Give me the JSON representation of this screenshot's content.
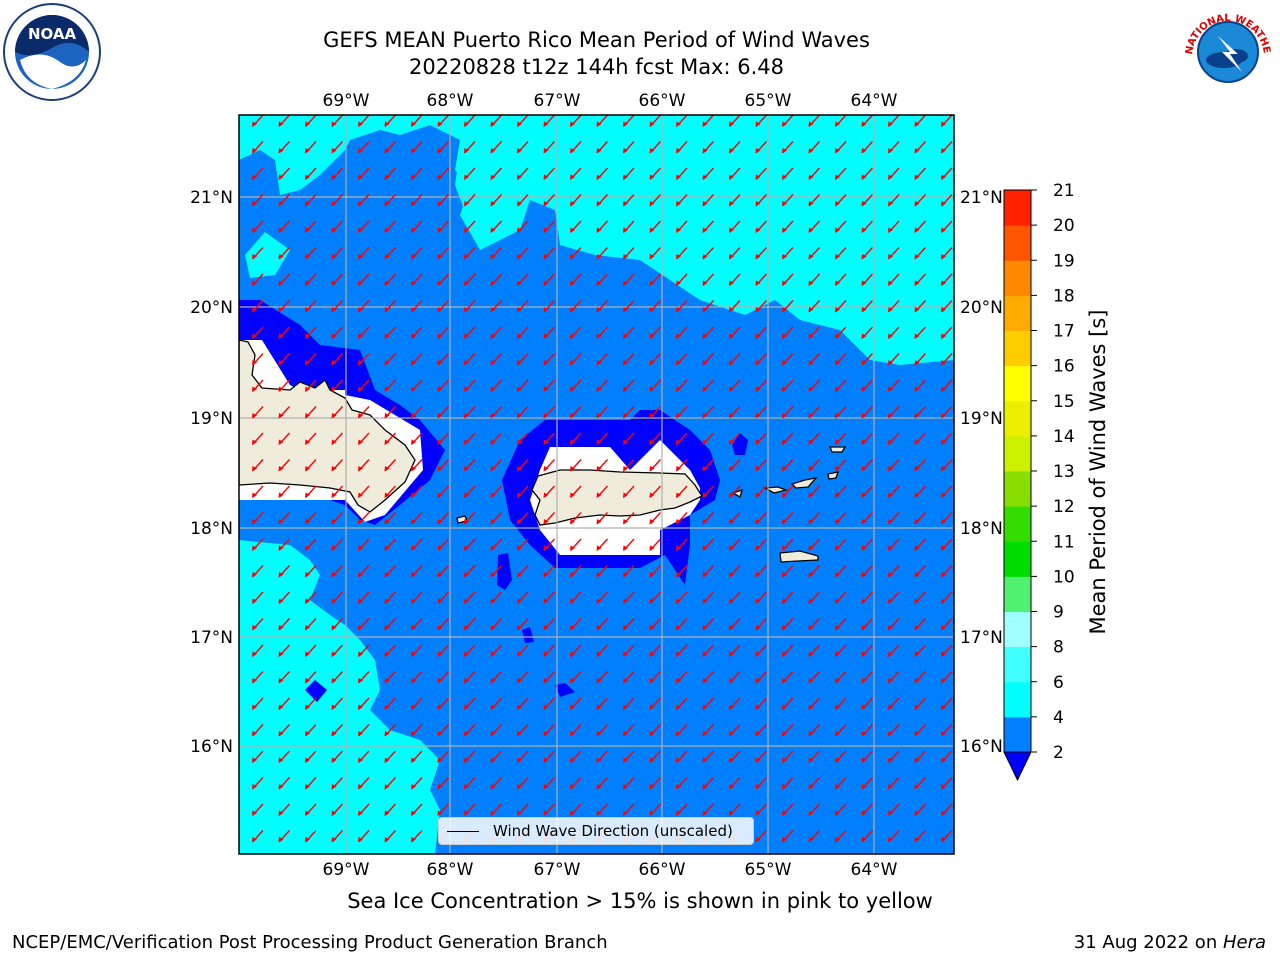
{
  "header": {
    "title_line1": "GEFS MEAN Puerto Rico Mean Period of Wind Waves",
    "title_line2": "20220828 t12z 144h fcst   Max: 6.48"
  },
  "logos": {
    "noaa_text": "NOAA",
    "nws_text": "NATIONAL WEATHER SERVICE"
  },
  "map": {
    "lon_ticks": [
      "69°W",
      "68°W",
      "67°W",
      "66°W",
      "65°W",
      "64°W"
    ],
    "lat_ticks": [
      "21°N",
      "20°N",
      "19°N",
      "18°N",
      "17°N",
      "16°N"
    ],
    "legend_label": "Wind Wave Direction (unscaled)",
    "arrow_direction": "southwest",
    "colors": {
      "ocean_2_4": "#0080ff",
      "ocean_4_6": "#00ffff",
      "below_2": "#0000ff",
      "land": "#efecdc",
      "arrows": "#ff0000",
      "grid": "#b0b0b0"
    }
  },
  "colorbar": {
    "label": "Mean Period of Wind Waves [s]",
    "ticks": [
      "2",
      "4",
      "6",
      "8",
      "9",
      "10",
      "11",
      "12",
      "13",
      "14",
      "15",
      "16",
      "17",
      "18",
      "19",
      "20",
      "21"
    ],
    "colors": [
      "#0080ff",
      "#00ffff",
      "#40ffff",
      "#a0ffff",
      "#50f070",
      "#00dd00",
      "#33dd00",
      "#88dd00",
      "#ccf000",
      "#eeee00",
      "#ffff00",
      "#ffcc00",
      "#ffaa00",
      "#ff8800",
      "#ff5500",
      "#ff2200"
    ],
    "under_color": "#0000ff"
  },
  "footer": {
    "note": "Sea Ice Concentration > 15% is shown in pink to yellow",
    "credit_left": "NCEP/EMC/Verification Post Processing Product Generation Branch",
    "credit_right_date": "31 Aug 2022 on ",
    "credit_right_host": "Hera"
  }
}
